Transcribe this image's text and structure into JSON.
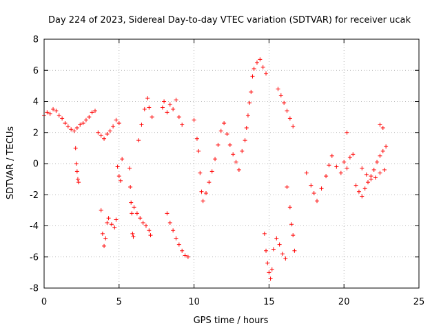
{
  "chart_data": {
    "type": "scatter",
    "title": "Day 224 of 2023, Sidereal Day-to-day VTEC variation (SDTVAR) for receiver ucak",
    "xlabel": "GPS time / hours",
    "ylabel": "SDTVAR / TECUs",
    "xlim": [
      0,
      25
    ],
    "ylim": [
      -8,
      8
    ],
    "xticks": [
      0,
      5,
      10,
      15,
      20,
      25
    ],
    "yticks": [
      -8,
      -6,
      -4,
      -2,
      0,
      2,
      4,
      6,
      8
    ],
    "grid": true,
    "legend": "none",
    "marker": "plus",
    "series": [
      {
        "name": "SDTVAR ucak",
        "color": "#ff0000",
        "x": [
          0.0,
          0.2,
          0.4,
          0.6,
          0.8,
          1.0,
          1.2,
          1.4,
          1.6,
          1.8,
          2.0,
          2.2,
          2.4,
          2.6,
          2.8,
          3.0,
          3.2,
          3.4,
          3.6,
          3.8,
          4.0,
          4.2,
          4.4,
          4.6,
          4.8,
          5.0,
          2.1,
          2.15,
          2.2,
          2.25,
          2.3,
          3.8,
          3.9,
          4.0,
          4.1,
          4.2,
          4.3,
          4.5,
          4.7,
          4.8,
          4.9,
          5.0,
          5.1,
          5.2,
          5.7,
          5.75,
          5.8,
          5.85,
          5.9,
          5.95,
          6.0,
          6.2,
          6.4,
          6.6,
          6.8,
          7.0,
          7.1,
          6.3,
          6.5,
          6.7,
          6.9,
          7.0,
          7.2,
          7.9,
          8.0,
          8.2,
          8.4,
          8.6,
          8.8,
          9.0,
          9.2,
          8.2,
          8.4,
          8.6,
          8.8,
          9.0,
          9.2,
          9.4,
          9.6,
          10.0,
          10.2,
          10.3,
          10.4,
          10.5,
          10.6,
          10.8,
          11.0,
          11.2,
          11.4,
          11.6,
          11.8,
          12.0,
          12.2,
          12.4,
          12.6,
          12.8,
          13.0,
          13.2,
          13.4,
          13.5,
          13.6,
          13.7,
          13.8,
          13.9,
          14.0,
          14.2,
          14.4,
          14.6,
          14.8,
          14.7,
          14.8,
          14.9,
          15.0,
          15.1,
          15.2,
          15.3,
          15.5,
          15.7,
          15.9,
          16.1,
          15.6,
          15.8,
          16.0,
          16.2,
          16.4,
          16.6,
          16.2,
          16.4,
          16.5,
          16.6,
          16.7,
          17.5,
          17.8,
          18.0,
          18.2,
          18.5,
          18.8,
          19.0,
          19.2,
          19.5,
          19.8,
          20.0,
          20.2,
          20.4,
          20.6,
          20.8,
          21.0,
          21.2,
          21.4,
          21.6,
          21.8,
          22.0,
          22.2,
          22.4,
          22.6,
          22.8,
          21.2,
          21.5,
          21.8,
          22.1,
          22.4,
          22.7,
          20.2,
          22.4,
          22.6
        ],
        "y": [
          3.1,
          3.3,
          3.2,
          3.5,
          3.4,
          3.1,
          2.9,
          2.6,
          2.4,
          2.2,
          2.1,
          2.3,
          2.5,
          2.6,
          2.8,
          3.0,
          3.3,
          3.4,
          2.0,
          1.8,
          1.6,
          1.9,
          2.1,
          2.4,
          2.8,
          2.6,
          1.0,
          0.0,
          -0.5,
          -1.0,
          -1.2,
          -3.0,
          -4.5,
          -5.3,
          -4.8,
          -3.8,
          -3.5,
          -3.9,
          -4.1,
          -3.6,
          -0.2,
          -0.8,
          -1.1,
          0.3,
          -0.3,
          -1.5,
          -2.5,
          -3.2,
          -4.5,
          -4.7,
          -2.8,
          -3.2,
          -3.5,
          -3.8,
          -4.0,
          -4.3,
          -4.6,
          1.5,
          2.5,
          3.5,
          4.2,
          3.6,
          3.0,
          3.6,
          4.0,
          3.3,
          3.8,
          3.5,
          4.1,
          3.0,
          2.5,
          -3.2,
          -3.8,
          -4.3,
          -4.8,
          -5.2,
          -5.6,
          -5.9,
          -6.0,
          2.8,
          1.6,
          0.8,
          -0.6,
          -1.8,
          -2.4,
          -1.9,
          -1.2,
          -0.5,
          0.3,
          1.2,
          2.1,
          2.6,
          1.9,
          1.2,
          0.6,
          0.1,
          -0.4,
          0.8,
          1.5,
          2.3,
          3.1,
          3.9,
          4.6,
          5.6,
          6.1,
          6.5,
          6.7,
          6.2,
          5.8,
          -4.5,
          -5.6,
          -6.4,
          -7.0,
          -7.4,
          -6.8,
          -5.5,
          -4.8,
          -5.2,
          -5.8,
          -6.1,
          4.8,
          4.4,
          3.9,
          3.4,
          2.9,
          2.4,
          -1.5,
          -2.8,
          -3.9,
          -4.6,
          -5.6,
          -0.6,
          -1.4,
          -1.9,
          -2.4,
          -1.6,
          -0.8,
          -0.1,
          0.5,
          -0.2,
          -0.6,
          0.1,
          -0.3,
          0.4,
          0.6,
          -1.4,
          -1.8,
          -2.1,
          -1.6,
          -1.2,
          -0.8,
          -0.4,
          0.1,
          0.5,
          0.8,
          1.1,
          -0.3,
          -0.7,
          -1.0,
          -0.9,
          -0.6,
          -0.4,
          2.0,
          2.5,
          2.3
        ]
      }
    ]
  }
}
